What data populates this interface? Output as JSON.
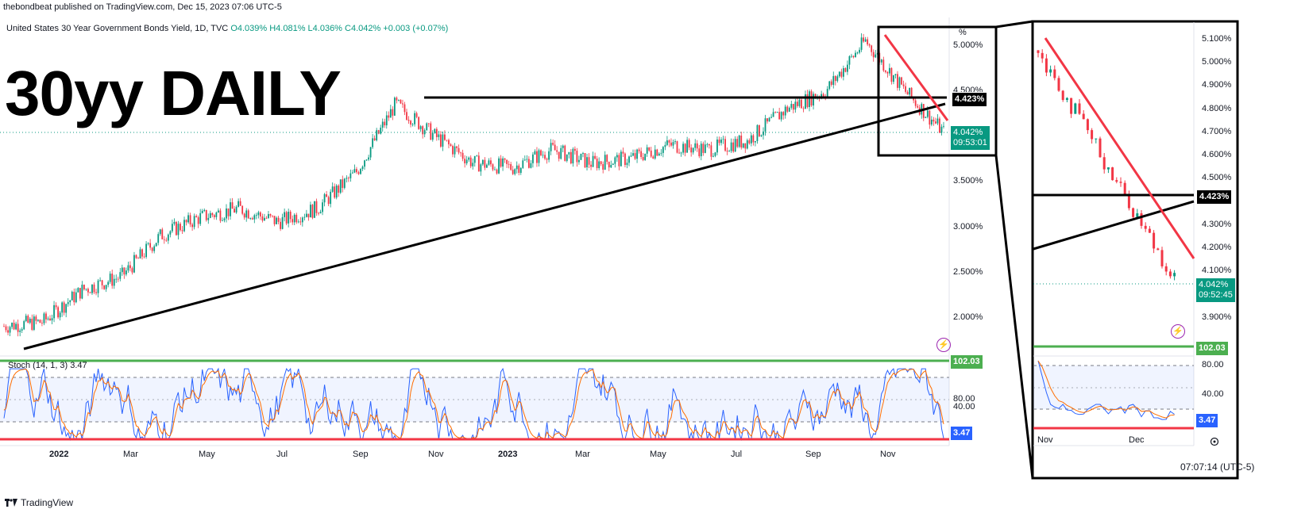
{
  "header": {
    "publish_text": "thebondbeat published on TradingView.com, Dec 15, 2023 07:06 UTC-5",
    "symbol_title": "United States 30 Year Government Bonds Yield, 1D, TVC",
    "ohlc_text": "O4.039% H4.081% L4.036% C4.042% +0.003 (+0.07%)"
  },
  "overlay_title": "30yy DAILY",
  "colors": {
    "up": "#089981",
    "down": "#f23645",
    "stoch_k": "#2962ff",
    "stoch_d": "#ff6d00",
    "trendline_black": "#000000",
    "trendline_red": "#f23645",
    "level_green": "#4caf50",
    "level_red": "#f23645"
  },
  "main_price_axis": {
    "labels": [
      "%",
      "5.000%",
      "4.500%",
      "3.500%",
      "3.000%",
      "2.500%",
      "2.000%"
    ]
  },
  "main_time_axis": {
    "labels": [
      "2022",
      "Mar",
      "May",
      "Jul",
      "Sep",
      "Nov",
      "2023",
      "Mar",
      "May",
      "Jul",
      "Sep",
      "Nov"
    ]
  },
  "badges": {
    "level_4423": "4.423%",
    "last_price": "4.042%",
    "countdown_main": "09:53:01",
    "countdown_zoom": "09:52:45",
    "stoch_top": "102.03",
    "stoch_last": "3.47"
  },
  "stoch": {
    "label": "Stoch (14, 1, 3) 3.47",
    "axis_labels": [
      "80.00",
      "40.00"
    ]
  },
  "zoom_panel": {
    "price_labels": [
      "5.100%",
      "5.000%",
      "4.900%",
      "4.800%",
      "4.700%",
      "4.600%",
      "4.500%",
      "4.300%",
      "4.200%",
      "4.100%",
      "3.900%"
    ],
    "stoch_labels": [
      "80.00",
      "40.00"
    ],
    "time_labels": [
      "Nov",
      "Dec"
    ],
    "clock": "07:07:14 (UTC-5)"
  },
  "footer": {
    "brand": "TradingView"
  },
  "chart_data": [
    {
      "type": "line",
      "title": "United States 30 Year Government Bonds Yield, 1D, TVC",
      "xlabel": "",
      "ylabel": "",
      "ylim": [
        1.6,
        5.25
      ],
      "series": [
        {
          "name": "",
          "x": [
            "2021-12",
            "2022-01",
            "2022-02",
            "2022-03",
            "2022-04",
            "2022-05",
            "2022-06",
            "2022-07",
            "2022-08",
            "2022-09",
            "2022-10",
            "2022-11",
            "2022-12",
            "2023-01",
            "2023-02",
            "2023-03",
            "2023-04",
            "2023-05",
            "2023-06",
            "2023-07",
            "2023-08",
            "2023-09",
            "2023-10",
            "2023-11",
            "2023-12"
          ],
          "values": [
            1.9,
            1.95,
            2.3,
            2.45,
            2.9,
            3.1,
            3.2,
            3.05,
            3.2,
            3.6,
            4.35,
            4.0,
            3.7,
            3.65,
            3.85,
            3.7,
            3.75,
            3.9,
            3.85,
            3.95,
            4.3,
            4.5,
            5.05,
            4.5,
            4.042
          ]
        }
      ],
      "annotations": [
        "4.423%",
        "4.042%"
      ],
      "last_value": 4.042
    },
    {
      "type": "line",
      "title": "Stoch (14, 1, 3)",
      "ylim": [
        0,
        110
      ],
      "levels": [
        102.03,
        3.47
      ],
      "last_value": 3.47
    }
  ]
}
